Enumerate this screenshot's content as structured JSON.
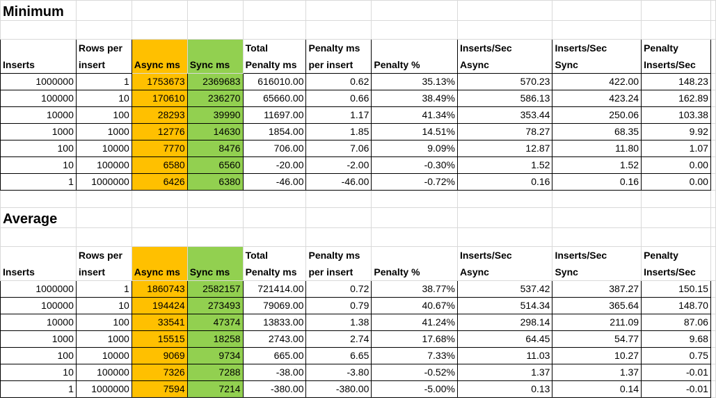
{
  "sections": [
    {
      "title": "Minimum",
      "headers": [
        [
          "",
          "Inserts"
        ],
        [
          "Rows per",
          "insert"
        ],
        [
          "",
          "Async ms"
        ],
        [
          "",
          "Sync ms"
        ],
        [
          "Total",
          "Penalty ms"
        ],
        [
          "Penalty ms",
          "per insert"
        ],
        [
          "",
          "Penalty %"
        ],
        [
          "Inserts/Sec",
          "Async"
        ],
        [
          "Inserts/Sec",
          "Sync"
        ],
        [
          "Penalty",
          "Inserts/Sec"
        ]
      ],
      "rows": [
        [
          "1000000",
          "1",
          "1753673",
          "2369683",
          "616010.00",
          "0.62",
          "35.13%",
          "570.23",
          "422.00",
          "148.23"
        ],
        [
          "100000",
          "10",
          "170610",
          "236270",
          "65660.00",
          "0.66",
          "38.49%",
          "586.13",
          "423.24",
          "162.89"
        ],
        [
          "10000",
          "100",
          "28293",
          "39990",
          "11697.00",
          "1.17",
          "41.34%",
          "353.44",
          "250.06",
          "103.38"
        ],
        [
          "1000",
          "1000",
          "12776",
          "14630",
          "1854.00",
          "1.85",
          "14.51%",
          "78.27",
          "68.35",
          "9.92"
        ],
        [
          "100",
          "10000",
          "7770",
          "8476",
          "706.00",
          "7.06",
          "9.09%",
          "12.87",
          "11.80",
          "1.07"
        ],
        [
          "10",
          "100000",
          "6580",
          "6560",
          "-20.00",
          "-2.00",
          "-0.30%",
          "1.52",
          "1.52",
          "0.00"
        ],
        [
          "1",
          "1000000",
          "6426",
          "6380",
          "-46.00",
          "-46.00",
          "-0.72%",
          "0.16",
          "0.16",
          "0.00"
        ]
      ]
    },
    {
      "title": "Average",
      "headers": [
        [
          "",
          "Inserts"
        ],
        [
          "Rows per",
          "insert"
        ],
        [
          "",
          "Async ms"
        ],
        [
          "",
          "Sync ms"
        ],
        [
          "Total",
          "Penalty ms"
        ],
        [
          "Penalty ms",
          "per insert"
        ],
        [
          "",
          "Penalty %"
        ],
        [
          "Inserts/Sec",
          "Async"
        ],
        [
          "Inserts/Sec",
          "Sync"
        ],
        [
          "Penalty",
          "Inserts/Sec"
        ]
      ],
      "rows": [
        [
          "1000000",
          "1",
          "1860743",
          "2582157",
          "721414.00",
          "0.72",
          "38.77%",
          "537.42",
          "387.27",
          "150.15"
        ],
        [
          "100000",
          "10",
          "194424",
          "273493",
          "79069.00",
          "0.79",
          "40.67%",
          "514.34",
          "365.64",
          "148.70"
        ],
        [
          "10000",
          "100",
          "33541",
          "47374",
          "13833.00",
          "1.38",
          "41.24%",
          "298.14",
          "211.09",
          "87.06"
        ],
        [
          "1000",
          "1000",
          "15515",
          "18258",
          "2743.00",
          "2.74",
          "17.68%",
          "64.45",
          "54.77",
          "9.68"
        ],
        [
          "100",
          "10000",
          "9069",
          "9734",
          "665.00",
          "6.65",
          "7.33%",
          "11.03",
          "10.27",
          "0.75"
        ],
        [
          "10",
          "100000",
          "7326",
          "7288",
          "-38.00",
          "-3.80",
          "-0.52%",
          "1.37",
          "1.37",
          "-0.01"
        ],
        [
          "1",
          "1000000",
          "7594",
          "7214",
          "-380.00",
          "-380.00",
          "-5.00%",
          "0.13",
          "0.14",
          "-0.01"
        ]
      ]
    }
  ],
  "colors": {
    "async": "#ffc000",
    "sync": "#92d050",
    "gridline": "#d9d9d9"
  }
}
